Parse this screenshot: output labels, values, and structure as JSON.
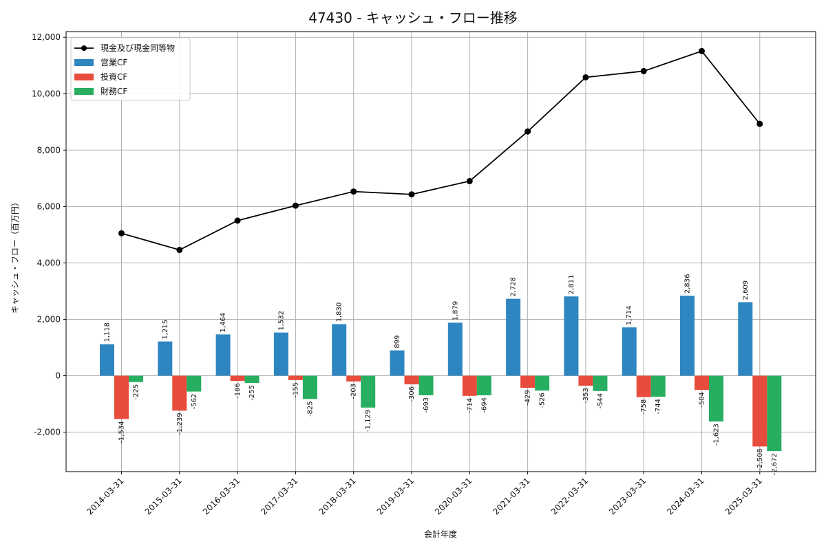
{
  "chart_data": {
    "type": "bar",
    "title": "47430 - キャッシュ・フロー推移",
    "xlabel": "会計年度",
    "ylabel": "キャッシュ・フロー（百万円）",
    "ylim": [
      -3400,
      12200
    ],
    "yticks": [
      -2000,
      0,
      2000,
      4000,
      6000,
      8000,
      10000,
      12000
    ],
    "ytick_labels": [
      "-2,000",
      "0",
      "2,000",
      "4,000",
      "6,000",
      "8,000",
      "10,000",
      "12,000"
    ],
    "grid": true,
    "legend_position": "top-left",
    "categories": [
      "2014-03-31",
      "2015-03-31",
      "2016-03-31",
      "2017-03-31",
      "2018-03-31",
      "2019-03-31",
      "2020-03-31",
      "2021-03-31",
      "2022-03-31",
      "2023-03-31",
      "2024-03-31",
      "2025-03-31"
    ],
    "series": [
      {
        "name": "営業CF",
        "kind": "bar",
        "color": "#2e86c1",
        "values": [
          1118,
          1215,
          1464,
          1532,
          1830,
          899,
          1879,
          2728,
          2811,
          1714,
          2836,
          2609
        ],
        "labels": [
          "1,118",
          "1,215",
          "1,464",
          "1,532",
          "1,830",
          "899",
          "1,879",
          "2,728",
          "2,811",
          "1,714",
          "2,836",
          "2,609"
        ]
      },
      {
        "name": "投資CF",
        "kind": "bar",
        "color": "#e74c3c",
        "values": [
          -1534,
          -1239,
          -186,
          -155,
          -203,
          -306,
          -714,
          -429,
          -353,
          -758,
          -504,
          -2508
        ],
        "labels": [
          "-1,534",
          "-1,239",
          "-186",
          "-155",
          "-203",
          "-306",
          "-714",
          "-429",
          "-353",
          "-758",
          "-504",
          "-2,508"
        ]
      },
      {
        "name": "財務CF",
        "kind": "bar",
        "color": "#27ae60",
        "values": [
          -225,
          -562,
          -255,
          -825,
          -1129,
          -693,
          -694,
          -526,
          -544,
          -744,
          -1623,
          -2672
        ],
        "labels": [
          "-225",
          "-562",
          "-255",
          "-825",
          "-1,129",
          "-693",
          "-694",
          "-526",
          "-544",
          "-744",
          "-1,623",
          "-2,672"
        ]
      },
      {
        "name": "現金及び現金同等物",
        "kind": "line",
        "color": "#000000",
        "values": [
          5050,
          4460,
          5500,
          6030,
          6530,
          6430,
          6900,
          8660,
          10580,
          10800,
          11510,
          8930
        ]
      }
    ]
  }
}
